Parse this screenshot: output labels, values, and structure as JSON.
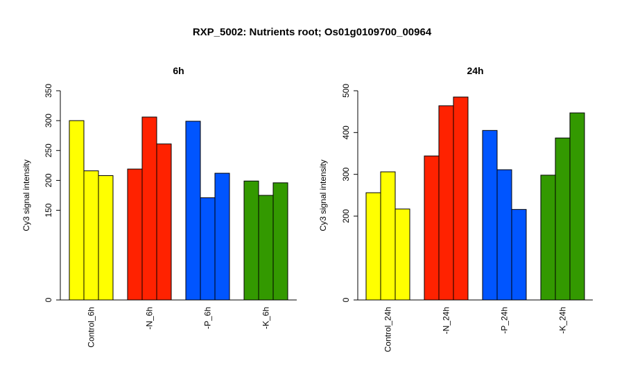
{
  "page": {
    "title": "RXP_5002: Nutrients root; Os01g0109700_00964"
  },
  "chart_data": [
    {
      "type": "bar",
      "title": "6h",
      "ylabel": "Cy3 signal intensity",
      "xlabel": "",
      "ylim": [
        0,
        350
      ],
      "yticks": [
        0,
        150,
        200,
        250,
        300,
        350
      ],
      "categories": [
        "Control_6h",
        "-N_6h",
        "-P_6h",
        "-K_6h"
      ],
      "colors": [
        "#ffff00",
        "#ff2200",
        "#0055ff",
        "#339900"
      ],
      "groups": [
        {
          "category": "Control_6h",
          "values": [
            300,
            216,
            208
          ]
        },
        {
          "category": "-N_6h",
          "values": [
            219,
            306,
            261
          ]
        },
        {
          "category": "-P_6h",
          "values": [
            299,
            171,
            212
          ]
        },
        {
          "category": "-K_6h",
          "values": [
            199,
            175,
            196
          ]
        }
      ]
    },
    {
      "type": "bar",
      "title": "24h",
      "ylabel": "Cy3 signal intensity",
      "xlabel": "",
      "ylim": [
        0,
        500
      ],
      "yticks": [
        0,
        200,
        300,
        400,
        500
      ],
      "categories": [
        "Control_24h",
        "-N_24h",
        "-P_24h",
        "-K_24h"
      ],
      "colors": [
        "#ffff00",
        "#ff2200",
        "#0055ff",
        "#339900"
      ],
      "groups": [
        {
          "category": "Control_24h",
          "values": [
            256,
            306,
            217
          ]
        },
        {
          "category": "-N_24h",
          "values": [
            344,
            464,
            485
          ]
        },
        {
          "category": "-P_24h",
          "values": [
            405,
            311,
            216
          ]
        },
        {
          "category": "-K_24h",
          "values": [
            298,
            387,
            447
          ]
        }
      ]
    }
  ]
}
